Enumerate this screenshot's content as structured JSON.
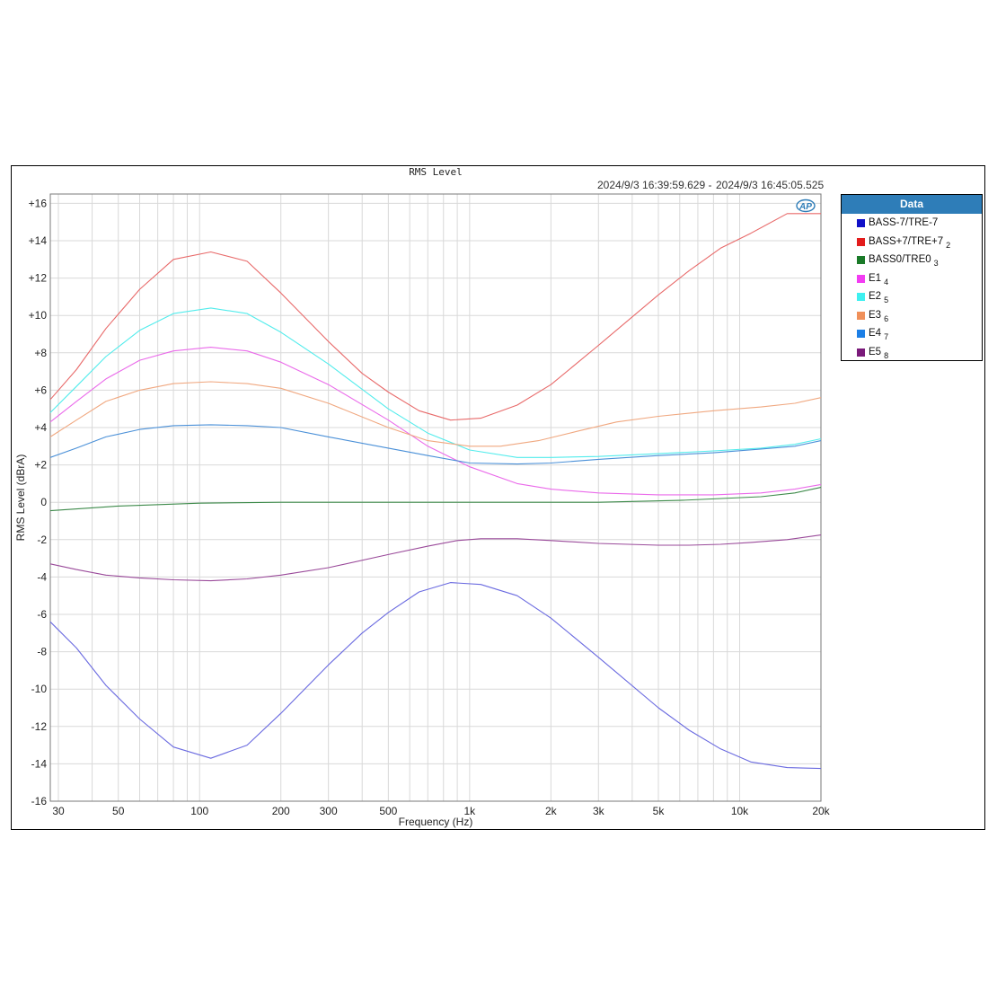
{
  "colors": {
    "bg": "#ffffff",
    "grid": "#d9d9d9",
    "legend_header": "#2e7db8"
  },
  "header": {
    "timestamp_start": "2024/9/3 16:39:59.629 -",
    "timestamp_end": "2024/9/3 16:45:05.525",
    "logo": "AP"
  },
  "legend": {
    "title": "Data",
    "items": [
      {
        "label": "BASS-7/TRE-7",
        "sub": "",
        "color": "#1010c8"
      },
      {
        "label": "BASS+7/TRE+7",
        "sub": "2",
        "color": "#e31c1c"
      },
      {
        "label": "BASS0/TRE0",
        "sub": "3",
        "color": "#1a7a28"
      },
      {
        "label": "E1",
        "sub": "4",
        "color": "#f23cf2"
      },
      {
        "label": "E2",
        "sub": "5",
        "color": "#3ef0f0"
      },
      {
        "label": "E3",
        "sub": "6",
        "color": "#f0905a"
      },
      {
        "label": "E4",
        "sub": "7",
        "color": "#1c7fe6"
      },
      {
        "label": "E5",
        "sub": "8",
        "color": "#7a1a7a"
      }
    ]
  },
  "chart_data": {
    "type": "line",
    "title": "RMS Level",
    "xlabel": "Frequency (Hz)",
    "ylabel": "RMS Level (dBrA)",
    "xscale": "log",
    "xlim": [
      28,
      20000
    ],
    "ylim": [
      -16,
      16.5
    ],
    "grid": true,
    "legend_position": "right",
    "x_ticks": [
      {
        "value": 30,
        "label": "30"
      },
      {
        "value": 50,
        "label": "50"
      },
      {
        "value": 100,
        "label": "100"
      },
      {
        "value": 200,
        "label": "200"
      },
      {
        "value": 300,
        "label": "300"
      },
      {
        "value": 500,
        "label": "500"
      },
      {
        "value": 1000,
        "label": "1k"
      },
      {
        "value": 2000,
        "label": "2k"
      },
      {
        "value": 3000,
        "label": "3k"
      },
      {
        "value": 5000,
        "label": "5k"
      },
      {
        "value": 10000,
        "label": "10k"
      },
      {
        "value": 20000,
        "label": "20k"
      }
    ],
    "y_ticks": [
      {
        "value": 16,
        "label": "+16"
      },
      {
        "value": 14,
        "label": "+14"
      },
      {
        "value": 12,
        "label": "+12"
      },
      {
        "value": 10,
        "label": "+10"
      },
      {
        "value": 8,
        "label": "+8"
      },
      {
        "value": 6,
        "label": "+6"
      },
      {
        "value": 4,
        "label": "+4"
      },
      {
        "value": 2,
        "label": "+2"
      },
      {
        "value": 0,
        "label": "0"
      },
      {
        "value": -2,
        "label": "-2"
      },
      {
        "value": -4,
        "label": "-4"
      },
      {
        "value": -6,
        "label": "-6"
      },
      {
        "value": -8,
        "label": "-8"
      },
      {
        "value": -10,
        "label": "-10"
      },
      {
        "value": -12,
        "label": "-12"
      },
      {
        "value": -14,
        "label": "-14"
      },
      {
        "value": -16,
        "label": "-16"
      }
    ],
    "series": [
      {
        "name": "BASS-7/TRE-7",
        "color": "#6a6ae0",
        "points": [
          [
            28,
            -6.4
          ],
          [
            35,
            -7.8
          ],
          [
            45,
            -9.8
          ],
          [
            60,
            -11.6
          ],
          [
            80,
            -13.1
          ],
          [
            110,
            -13.7
          ],
          [
            150,
            -13.0
          ],
          [
            200,
            -11.3
          ],
          [
            300,
            -8.7
          ],
          [
            400,
            -7.0
          ],
          [
            500,
            -5.9
          ],
          [
            650,
            -4.8
          ],
          [
            850,
            -4.3
          ],
          [
            1100,
            -4.4
          ],
          [
            1500,
            -5.0
          ],
          [
            2000,
            -6.2
          ],
          [
            3000,
            -8.3
          ],
          [
            5000,
            -11.0
          ],
          [
            6500,
            -12.2
          ],
          [
            8500,
            -13.2
          ],
          [
            11000,
            -13.9
          ],
          [
            15000,
            -14.2
          ],
          [
            20000,
            -14.25
          ]
        ]
      },
      {
        "name": "BASS+7/TRE+7",
        "color": "#e86a6a",
        "points": [
          [
            28,
            5.5
          ],
          [
            35,
            7.1
          ],
          [
            45,
            9.3
          ],
          [
            60,
            11.4
          ],
          [
            80,
            13.0
          ],
          [
            110,
            13.4
          ],
          [
            150,
            12.9
          ],
          [
            200,
            11.2
          ],
          [
            300,
            8.6
          ],
          [
            400,
            6.9
          ],
          [
            500,
            5.9
          ],
          [
            650,
            4.9
          ],
          [
            850,
            4.4
          ],
          [
            1100,
            4.5
          ],
          [
            1500,
            5.2
          ],
          [
            2000,
            6.3
          ],
          [
            3000,
            8.4
          ],
          [
            5000,
            11.1
          ],
          [
            6500,
            12.4
          ],
          [
            8500,
            13.6
          ],
          [
            11000,
            14.4
          ],
          [
            15000,
            15.45
          ],
          [
            20000,
            15.45
          ]
        ]
      },
      {
        "name": "BASS0/TRE0",
        "color": "#3d8a4a",
        "points": [
          [
            28,
            -0.45
          ],
          [
            50,
            -0.2
          ],
          [
            100,
            -0.05
          ],
          [
            200,
            0
          ],
          [
            500,
            0
          ],
          [
            1000,
            0
          ],
          [
            3000,
            0
          ],
          [
            6000,
            0.1
          ],
          [
            12000,
            0.3
          ],
          [
            16000,
            0.5
          ],
          [
            20000,
            0.8
          ]
        ]
      },
      {
        "name": "E1",
        "color": "#ea6aea",
        "points": [
          [
            28,
            4.3
          ],
          [
            35,
            5.4
          ],
          [
            45,
            6.6
          ],
          [
            60,
            7.6
          ],
          [
            80,
            8.1
          ],
          [
            110,
            8.3
          ],
          [
            150,
            8.1
          ],
          [
            200,
            7.5
          ],
          [
            300,
            6.3
          ],
          [
            500,
            4.4
          ],
          [
            700,
            3.0
          ],
          [
            1000,
            1.9
          ],
          [
            1500,
            1.0
          ],
          [
            2000,
            0.7
          ],
          [
            3000,
            0.5
          ],
          [
            5000,
            0.4
          ],
          [
            8000,
            0.4
          ],
          [
            12000,
            0.5
          ],
          [
            16000,
            0.7
          ],
          [
            20000,
            0.95
          ]
        ]
      },
      {
        "name": "E2",
        "color": "#52ecec",
        "points": [
          [
            28,
            4.8
          ],
          [
            35,
            6.2
          ],
          [
            45,
            7.8
          ],
          [
            60,
            9.2
          ],
          [
            80,
            10.1
          ],
          [
            110,
            10.4
          ],
          [
            150,
            10.1
          ],
          [
            200,
            9.1
          ],
          [
            300,
            7.4
          ],
          [
            500,
            5.0
          ],
          [
            700,
            3.7
          ],
          [
            1000,
            2.8
          ],
          [
            1500,
            2.4
          ],
          [
            2000,
            2.4
          ],
          [
            3000,
            2.45
          ],
          [
            5000,
            2.6
          ],
          [
            8000,
            2.75
          ],
          [
            12000,
            2.9
          ],
          [
            16000,
            3.1
          ],
          [
            20000,
            3.4
          ]
        ]
      },
      {
        "name": "E3",
        "color": "#f0a880",
        "points": [
          [
            28,
            3.5
          ],
          [
            35,
            4.4
          ],
          [
            45,
            5.4
          ],
          [
            60,
            6.0
          ],
          [
            80,
            6.35
          ],
          [
            110,
            6.45
          ],
          [
            150,
            6.35
          ],
          [
            200,
            6.1
          ],
          [
            300,
            5.3
          ],
          [
            500,
            4.0
          ],
          [
            700,
            3.3
          ],
          [
            1000,
            3.0
          ],
          [
            1300,
            3.0
          ],
          [
            1800,
            3.3
          ],
          [
            2500,
            3.8
          ],
          [
            3500,
            4.3
          ],
          [
            5000,
            4.6
          ],
          [
            8000,
            4.9
          ],
          [
            12000,
            5.1
          ],
          [
            16000,
            5.3
          ],
          [
            20000,
            5.6
          ]
        ]
      },
      {
        "name": "E4",
        "color": "#4a90d8",
        "points": [
          [
            28,
            2.4
          ],
          [
            35,
            2.9
          ],
          [
            45,
            3.5
          ],
          [
            60,
            3.9
          ],
          [
            80,
            4.1
          ],
          [
            110,
            4.15
          ],
          [
            150,
            4.1
          ],
          [
            200,
            4.0
          ],
          [
            300,
            3.5
          ],
          [
            500,
            2.9
          ],
          [
            700,
            2.5
          ],
          [
            1000,
            2.1
          ],
          [
            1500,
            2.05
          ],
          [
            2000,
            2.1
          ],
          [
            3000,
            2.3
          ],
          [
            5000,
            2.5
          ],
          [
            8000,
            2.65
          ],
          [
            12000,
            2.85
          ],
          [
            16000,
            3.0
          ],
          [
            20000,
            3.3
          ]
        ]
      },
      {
        "name": "E5",
        "color": "#9a4a9a",
        "points": [
          [
            28,
            -3.3
          ],
          [
            35,
            -3.6
          ],
          [
            45,
            -3.9
          ],
          [
            60,
            -4.05
          ],
          [
            80,
            -4.15
          ],
          [
            110,
            -4.2
          ],
          [
            150,
            -4.1
          ],
          [
            200,
            -3.9
          ],
          [
            300,
            -3.5
          ],
          [
            500,
            -2.8
          ],
          [
            700,
            -2.35
          ],
          [
            900,
            -2.05
          ],
          [
            1100,
            -1.95
          ],
          [
            1500,
            -1.95
          ],
          [
            2000,
            -2.05
          ],
          [
            3000,
            -2.2
          ],
          [
            5000,
            -2.3
          ],
          [
            6500,
            -2.3
          ],
          [
            8500,
            -2.25
          ],
          [
            11000,
            -2.15
          ],
          [
            15000,
            -2.0
          ],
          [
            20000,
            -1.75
          ]
        ]
      }
    ]
  }
}
